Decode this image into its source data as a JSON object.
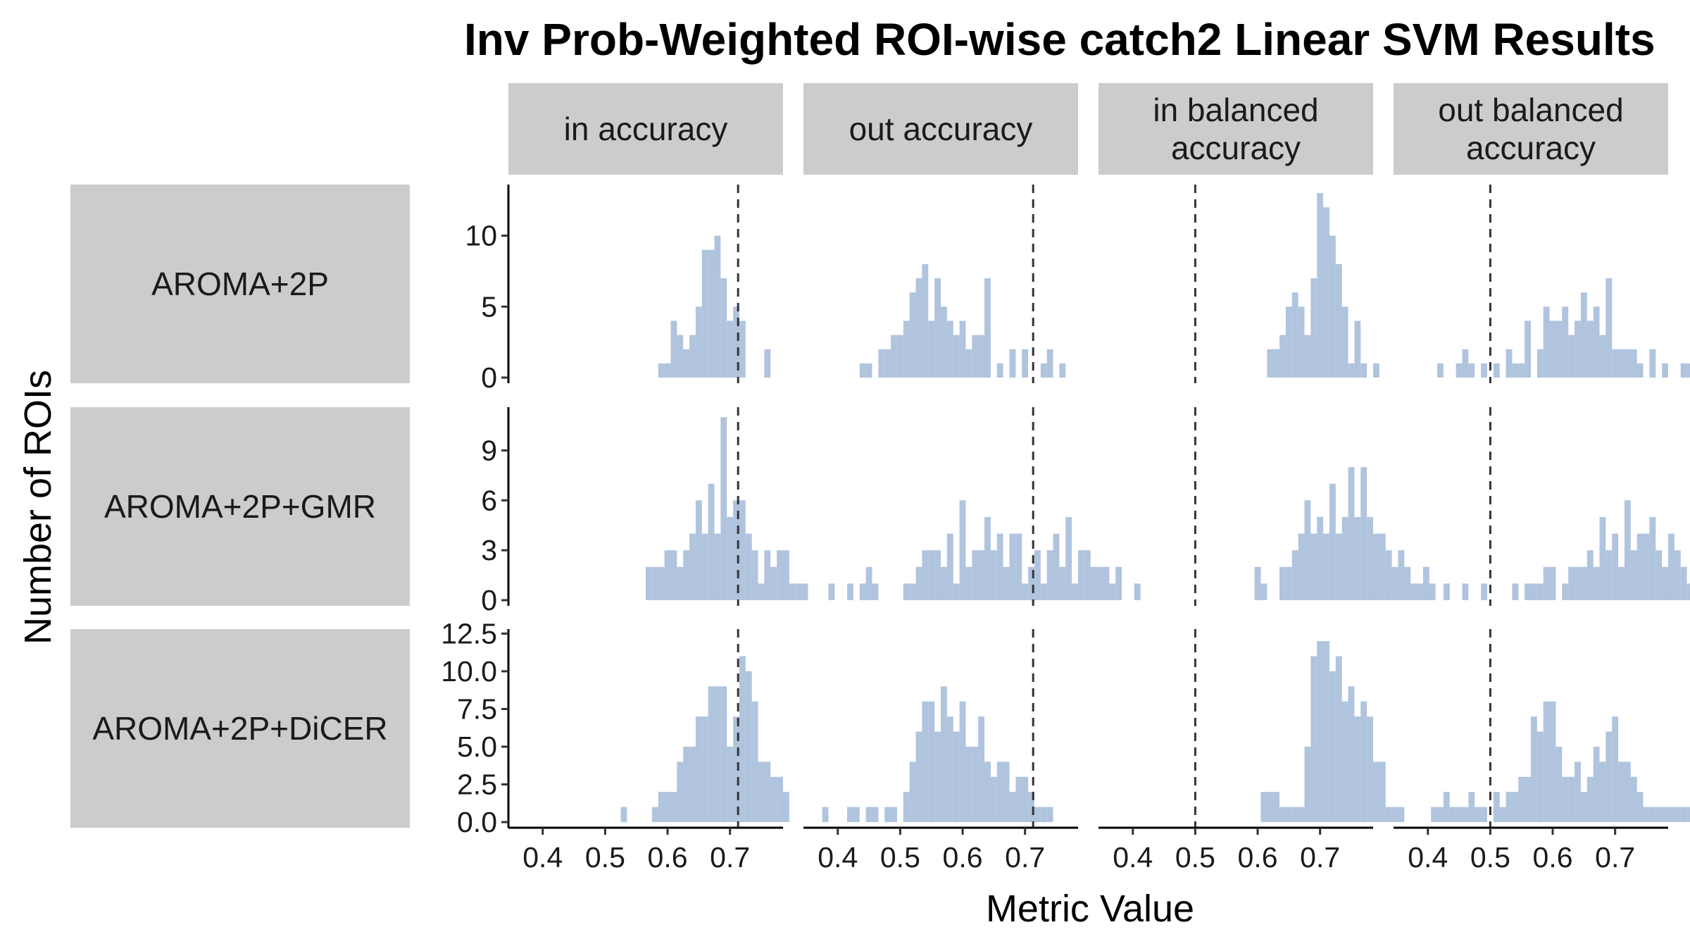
{
  "chart_data": {
    "type": "histogram",
    "title": "Inv Prob-Weighted ROI-wise catch2 Linear SVM Results",
    "xlabel": "Metric Value",
    "ylabel": "Number of ROIs",
    "bar_color": "#B0C4DE",
    "strip_color": "#CCCCCC",
    "bin_width": 0.01,
    "grid": false,
    "columns": [
      {
        "label": "in accuracy",
        "ref_line": 0.713
      },
      {
        "label": "out accuracy",
        "ref_line": 0.713
      },
      {
        "label": "in balanced accuracy",
        "ref_line": 0.5
      },
      {
        "label": "out balanced accuracy",
        "ref_line": 0.5
      }
    ],
    "column_labels": [
      [
        "in accuracy"
      ],
      [
        "out accuracy"
      ],
      [
        "in balanced",
        "accuracy"
      ],
      [
        "out balanced",
        "accuracy"
      ]
    ],
    "x_ticks": [
      "0.4",
      "0.5",
      "0.6",
      "0.7"
    ],
    "xlim": [
      0.345,
      0.785
    ],
    "rows": [
      {
        "label": "AROMA+2P",
        "ylim": [
          0,
          13.6
        ],
        "y_ticks": [
          0,
          5,
          10
        ],
        "y_tick_labels": [
          "0",
          "5",
          "10"
        ],
        "panels": [
          {
            "start": 0.585,
            "counts": [
              1,
              1,
              4,
              3,
              2,
              3,
              5,
              9,
              9,
              10,
              7,
              4,
              5,
              4,
              0,
              0,
              0,
              2
            ]
          },
          {
            "start": 0.435,
            "counts": [
              1,
              1,
              0,
              2,
              2,
              3,
              3,
              4,
              6,
              7,
              8,
              4,
              7,
              5,
              4,
              3,
              4,
              2,
              3,
              3,
              7,
              0,
              1,
              0,
              2,
              0,
              2,
              0,
              0,
              1,
              2,
              0,
              1
            ]
          },
          {
            "start": 0.615,
            "counts": [
              2,
              2,
              3,
              5,
              6,
              5,
              3,
              7,
              13,
              12,
              10,
              8,
              5,
              1,
              4,
              1,
              0,
              1
            ]
          },
          {
            "start": 0.415,
            "counts": [
              1,
              0,
              0,
              1,
              2,
              1,
              0,
              1,
              0,
              1,
              0,
              2,
              1,
              1,
              4,
              0,
              2,
              5,
              4,
              4,
              5,
              3,
              4,
              6,
              4,
              5,
              3,
              7,
              2,
              2,
              2,
              2,
              1,
              0,
              2,
              0,
              1,
              0,
              0,
              1,
              1,
              0,
              1,
              0,
              0,
              1,
              2
            ]
          }
        ]
      },
      {
        "label": "AROMA+2P+GMR",
        "ylim": [
          0,
          11.6
        ],
        "y_ticks": [
          0,
          3,
          6,
          9
        ],
        "y_tick_labels": [
          "0",
          "3",
          "6",
          "9"
        ],
        "panels": [
          {
            "start": 0.565,
            "counts": [
              2,
              2,
              2,
              3,
              3,
              2,
              3,
              4,
              6,
              4,
              7,
              4,
              11,
              5,
              6,
              6,
              4,
              3,
              1,
              3,
              2,
              3,
              3,
              1,
              1,
              1
            ]
          },
          {
            "start": 0.385,
            "counts": [
              1,
              0,
              0,
              1,
              0,
              1,
              2,
              1,
              0,
              0,
              0,
              0,
              1,
              1,
              2,
              3,
              3,
              3,
              2,
              4,
              1,
              6,
              2,
              3,
              3,
              5,
              3,
              4,
              2,
              4,
              4,
              1,
              2,
              3,
              1,
              3,
              4,
              2,
              5,
              1,
              3,
              3,
              2,
              2,
              2,
              1,
              2,
              0,
              0,
              1
            ]
          },
          {
            "start": 0.595,
            "counts": [
              2,
              1,
              0,
              0,
              2,
              2,
              3,
              4,
              6,
              4,
              5,
              4,
              7,
              4,
              5,
              8,
              5,
              8,
              5,
              4,
              4,
              3,
              2,
              3,
              2,
              1,
              1,
              2,
              1
            ]
          },
          {
            "start": 0.395,
            "counts": [
              1,
              0,
              0,
              1,
              0,
              0,
              1,
              0,
              0,
              1,
              0,
              0,
              0,
              0,
              1,
              0,
              1,
              1,
              1,
              2,
              2,
              0,
              1,
              2,
              2,
              2,
              3,
              2,
              5,
              3,
              4,
              2,
              6,
              3,
              4,
              4,
              5,
              3,
              2,
              4,
              3,
              2,
              1,
              2,
              1,
              1,
              1,
              0,
              1,
              1
            ]
          }
        ]
      },
      {
        "label": "AROMA+2P+DiCER",
        "ylim": [
          0,
          12.8
        ],
        "y_ticks": [
          0,
          2.5,
          5,
          7.5,
          10,
          12.5
        ],
        "y_tick_labels": [
          "0.0",
          "2.5",
          "5.0",
          "7.5",
          "10.0",
          "12.5"
        ],
        "panels": [
          {
            "start": 0.525,
            "counts": [
              1,
              0,
              0,
              0,
              0,
              1,
              2,
              2,
              2,
              4,
              5,
              5,
              7,
              7,
              9,
              9,
              9,
              5,
              7,
              11,
              10,
              8,
              4,
              4,
              3,
              3,
              2
            ]
          },
          {
            "start": 0.375,
            "counts": [
              1,
              0,
              0,
              0,
              1,
              1,
              0,
              1,
              1,
              0,
              1,
              1,
              0,
              2,
              4,
              6,
              8,
              8,
              6,
              9,
              7,
              6,
              8,
              5,
              5,
              7,
              4,
              3,
              4,
              4,
              2,
              3,
              3,
              2,
              1,
              1,
              1
            ]
          },
          {
            "start": 0.605,
            "counts": [
              2,
              2,
              2,
              1,
              1,
              1,
              1,
              5,
              11,
              12,
              12,
              10,
              11,
              8,
              9,
              7,
              8,
              7,
              4,
              4,
              1,
              1,
              1
            ]
          },
          {
            "start": 0.405,
            "counts": [
              1,
              1,
              2,
              1,
              1,
              1,
              2,
              1,
              1,
              0,
              2,
              1,
              2,
              2,
              3,
              3,
              7,
              6,
              8,
              8,
              5,
              3,
              3,
              4,
              2,
              3,
              5,
              4,
              6,
              7,
              4,
              4,
              3,
              2,
              1,
              1,
              1,
              1,
              1,
              1,
              1,
              1,
              1
            ]
          }
        ]
      }
    ]
  }
}
